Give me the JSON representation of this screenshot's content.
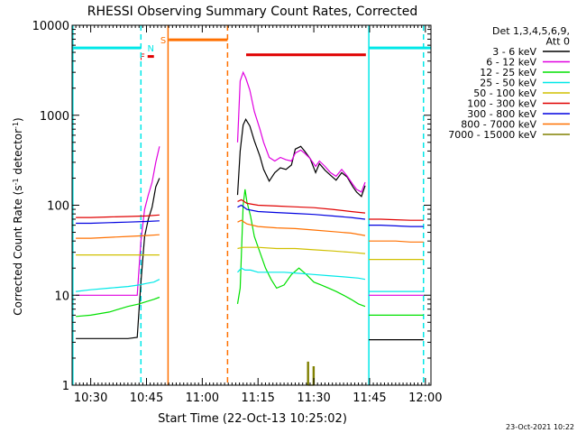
{
  "chart_data": {
    "type": "line",
    "title": "RHESSI Observing Summary Count Rates, Corrected",
    "xlabel": "Start Time (22-Oct-13 10:25:02)",
    "ylabel": "Corrected Count Rate (s",
    "ylabel_sup1": "-1",
    "ylabel_mid": " detector",
    "ylabel_sup2": "-1",
    "ylabel_end": ")",
    "x_range_min": [
      25.0,
      121.5
    ],
    "y_scale": "log",
    "y_range": [
      1,
      10000
    ],
    "x_ticks": [
      {
        "min": 30,
        "label": "10:30"
      },
      {
        "min": 45,
        "label": "10:45"
      },
      {
        "min": 60,
        "label": "11:00"
      },
      {
        "min": 75,
        "label": "11:15"
      },
      {
        "min": 90,
        "label": "11:30"
      },
      {
        "min": 105,
        "label": "11:45"
      },
      {
        "min": 120,
        "label": "12:00"
      }
    ],
    "y_ticks": [
      {
        "value": 1,
        "label": "1"
      },
      {
        "value": 10,
        "label": "10"
      },
      {
        "value": 100,
        "label": "100"
      },
      {
        "value": 1000,
        "label": "1000"
      },
      {
        "value": 10000,
        "label": "10000"
      }
    ],
    "legend": {
      "position": "top-right",
      "header": [
        "Det 1,3,4,5,6,9,",
        "Att 0"
      ],
      "entries": [
        {
          "label": "3 - 6 keV",
          "color": "#000000"
        },
        {
          "label": "6 - 12 keV",
          "color": "#e000e0"
        },
        {
          "label": "12 - 25 keV",
          "color": "#00e000"
        },
        {
          "label": "25 - 50 keV",
          "color": "#00e8e8"
        },
        {
          "label": "50 - 100 keV",
          "color": "#d0c000"
        },
        {
          "label": "100 - 300 keV",
          "color": "#e00000"
        },
        {
          "label": "300 - 800 keV",
          "color": "#0000e0"
        },
        {
          "label": "800 - 7000 keV",
          "color": "#ff7000"
        },
        {
          "label": "7000 - 15000 keV",
          "color": "#808000"
        }
      ]
    },
    "flag_bars": [
      {
        "label": "",
        "color": "#00e8e8",
        "x0": 25.0,
        "x1": 43.5,
        "y": 5600
      },
      {
        "label": "F",
        "color": "#e00000",
        "x0": 45.3,
        "x1": 47.0,
        "y": 4500
      },
      {
        "label": "N",
        "color": "#00e8e8",
        "x0": 47.8,
        "x1": 47.8,
        "y": 5600
      },
      {
        "label": "S",
        "color": "#ff7000",
        "x0": 51.0,
        "x1": 66.8,
        "y": 6900
      },
      {
        "label": "",
        "color": "#e00000",
        "x0": 71.8,
        "x1": 104.0,
        "y": 4700
      },
      {
        "label": "",
        "color": "#00e8e8",
        "x0": 104.8,
        "x1": 121.5,
        "y": 5600
      }
    ],
    "vertical_lines": [
      {
        "x": 25.2,
        "color": "#00e8e8",
        "style": "solid"
      },
      {
        "x": 43.5,
        "color": "#00e8e8",
        "style": "dashed"
      },
      {
        "x": 50.8,
        "color": "#ff7000",
        "style": "solid"
      },
      {
        "x": 66.8,
        "color": "#ff7000",
        "style": "dashed"
      },
      {
        "x": 104.8,
        "color": "#00e8e8",
        "style": "solid"
      },
      {
        "x": 119.5,
        "color": "#00e8e8",
        "style": "dashed"
      }
    ],
    "series": [
      {
        "name": "3 - 6 keV",
        "color": "#000000",
        "segments": [
          {
            "x": [
              26,
              30,
              35,
              40,
              42.5,
              43.5,
              44.5,
              45.5,
              46.5,
              47.5,
              48.5
            ],
            "y": [
              3.3,
              3.3,
              3.3,
              3.3,
              3.4,
              14,
              45,
              70,
              95,
              160,
              200
            ]
          },
          {
            "x": [
              69.5,
              70.2,
              71,
              71.7,
              72.8,
              74,
              75.5,
              76.5,
              78,
              79.5,
              81,
              82.5,
              84,
              85,
              86.5,
              87.5,
              89,
              90.5,
              91.5,
              93,
              94.5,
              96,
              97.5,
              99,
              100.5,
              101.5,
              102.8,
              103.8
            ],
            "y": [
              130,
              400,
              780,
              900,
              760,
              520,
              350,
              250,
              185,
              230,
              260,
              250,
              280,
              420,
              450,
              400,
              330,
              230,
              290,
              245,
              215,
              190,
              230,
              205,
              160,
              140,
              125,
              165
            ]
          },
          {
            "x": [
              104.8,
              108,
              112,
              116,
              119.5
            ],
            "y": [
              3.2,
              3.2,
              3.2,
              3.2,
              3.2
            ]
          }
        ]
      },
      {
        "name": "6 - 12 keV",
        "color": "#e000e0",
        "segments": [
          {
            "x": [
              26,
              30,
              35,
              40,
              42.5,
              43.5,
              44.5,
              45.5,
              46.5,
              47.5,
              48.5
            ],
            "y": [
              10,
              10,
              10,
              10,
              10,
              40,
              90,
              130,
              180,
              300,
              450
            ]
          },
          {
            "x": [
              69.5,
              70.2,
              71,
              71.7,
              72.8,
              74,
              75.5,
              76.5,
              78,
              79.5,
              81,
              82.5,
              84,
              85,
              86.5,
              87.5,
              89,
              90.5,
              91.5,
              93,
              94.5,
              96,
              97.5,
              99,
              100.5,
              101.5,
              102.8,
              103.8
            ],
            "y": [
              500,
              2400,
              3000,
              2600,
              1900,
              1100,
              700,
              500,
              340,
              310,
              340,
              320,
              310,
              380,
              410,
              380,
              330,
              270,
              310,
              270,
              230,
              210,
              250,
              210,
              170,
              150,
              140,
              180
            ]
          },
          {
            "x": [
              104.8,
              108,
              112,
              116,
              119.5
            ],
            "y": [
              10,
              10,
              10,
              10,
              10
            ]
          }
        ]
      },
      {
        "name": "12 - 25 keV",
        "color": "#00e000",
        "segments": [
          {
            "x": [
              26,
              30,
              35,
              40,
              43,
              45,
              47,
              48.5
            ],
            "y": [
              5.8,
              6,
              6.5,
              7.5,
              8,
              8.5,
              9,
              9.5
            ]
          },
          {
            "x": [
              69.5,
              70.2,
              71,
              71.5,
              72,
              73,
              74,
              75.5,
              77,
              78.5,
              80,
              82,
              84,
              86,
              88,
              90,
              92,
              94,
              96,
              98,
              100,
              102,
              103.8
            ],
            "y": [
              8,
              12,
              100,
              150,
              110,
              75,
              45,
              30,
              20,
              15,
              12,
              13,
              17,
              20,
              17,
              14,
              13,
              12,
              11,
              10,
              9,
              8,
              7.5
            ]
          },
          {
            "x": [
              104.8,
              108,
              112,
              116,
              119.5
            ],
            "y": [
              6,
              6,
              6,
              6,
              6
            ]
          }
        ]
      },
      {
        "name": "25 - 50 keV",
        "color": "#00e8e8",
        "segments": [
          {
            "x": [
              26,
              30,
              35,
              40,
              43,
              45,
              47,
              48.5
            ],
            "y": [
              11,
              11.5,
              12,
              12.5,
              13,
              13.5,
              14,
              15
            ]
          },
          {
            "x": [
              69.5,
              70.5,
              71.5,
              73,
              75,
              78,
              82,
              86,
              90,
              94,
              98,
              102,
              103.8
            ],
            "y": [
              18,
              20,
              19,
              19,
              18,
              18,
              18,
              17.5,
              17,
              16.5,
              16,
              15.5,
              15
            ]
          },
          {
            "x": [
              104.8,
              108,
              112,
              116,
              119.5
            ],
            "y": [
              11,
              11,
              11,
              11,
              11
            ]
          }
        ]
      },
      {
        "name": "50 - 100 keV",
        "color": "#d0c000",
        "segments": [
          {
            "x": [
              26,
              30,
              35,
              40,
              45,
              48.5
            ],
            "y": [
              28,
              28,
              28,
              28,
              28,
              28
            ]
          },
          {
            "x": [
              69.5,
              71,
              75,
              80,
              85,
              90,
              95,
              100,
              103.8
            ],
            "y": [
              33,
              34,
              34,
              33,
              33,
              32,
              31,
              30,
              29
            ]
          },
          {
            "x": [
              104.8,
              108,
              112,
              116,
              119.5
            ],
            "y": [
              25,
              25,
              25,
              25,
              25
            ]
          }
        ]
      },
      {
        "name": "100 - 300 keV",
        "color": "#e00000",
        "segments": [
          {
            "x": [
              26,
              30,
              35,
              40,
              45,
              48.5
            ],
            "y": [
              73,
              73,
              74,
              75,
              76,
              78
            ]
          },
          {
            "x": [
              69.5,
              70.5,
              72,
              75,
              80,
              85,
              90,
              95,
              100,
              103.8
            ],
            "y": [
              110,
              115,
              105,
              100,
              98,
              96,
              94,
              90,
              85,
              82
            ]
          },
          {
            "x": [
              104.8,
              108,
              112,
              116,
              119.5
            ],
            "y": [
              70,
              70,
              69,
              68,
              68
            ]
          }
        ]
      },
      {
        "name": "300 - 800 keV",
        "color": "#0000e0",
        "segments": [
          {
            "x": [
              26,
              30,
              35,
              40,
              45,
              48.5
            ],
            "y": [
              63,
              63,
              64,
              65,
              66,
              67
            ]
          },
          {
            "x": [
              69.5,
              70.5,
              72,
              75,
              80,
              85,
              90,
              95,
              100,
              103.8
            ],
            "y": [
              95,
              100,
              90,
              85,
              83,
              81,
              79,
              76,
              73,
              70
            ]
          },
          {
            "x": [
              104.8,
              108,
              112,
              116,
              119.5
            ],
            "y": [
              60,
              60,
              59,
              58,
              58
            ]
          }
        ]
      },
      {
        "name": "800 - 7000 keV",
        "color": "#ff7000",
        "segments": [
          {
            "x": [
              26,
              30,
              35,
              40,
              45,
              48.5
            ],
            "y": [
              43,
              43,
              44,
              45,
              46,
              47
            ]
          },
          {
            "x": [
              69.5,
              70.5,
              72,
              75,
              80,
              85,
              90,
              95,
              100,
              103.8
            ],
            "y": [
              65,
              68,
              62,
              58,
              56,
              55,
              53,
              51,
              49,
              46
            ]
          },
          {
            "x": [
              104.8,
              108,
              112,
              116,
              119.5
            ],
            "y": [
              40,
              40,
              40,
              39,
              39
            ]
          }
        ]
      },
      {
        "name": "7000 - 15000 keV",
        "color": "#808000",
        "segments": [
          {
            "x": [
              88.3,
              88.3,
              88.6,
              88.6,
              89.8,
              89.8,
              90.1,
              90.1
            ],
            "y": [
              1,
              1.8,
              1.8,
              1,
              1,
              1.6,
              1.6,
              1
            ]
          }
        ]
      }
    ],
    "footer_date": "23-Oct-2021 10:22"
  }
}
